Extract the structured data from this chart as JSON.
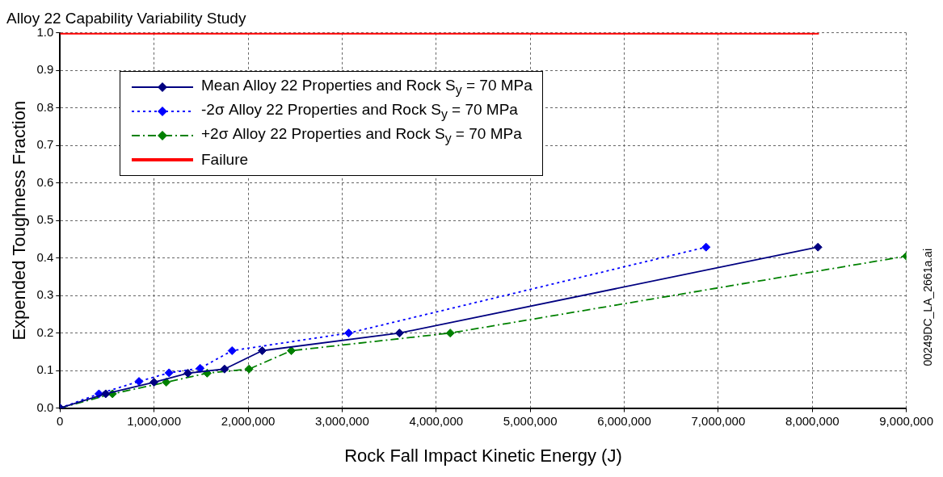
{
  "chart_data": {
    "type": "line",
    "title": "Alloy 22 Capability Variability Study",
    "xlabel": "Rock Fall Impact Kinetic Energy (J)",
    "ylabel": "Expended Toughness Fraction",
    "annotations": [
      "00249DC_LA_2661a.ai"
    ],
    "xlim": [
      0,
      9000000
    ],
    "xticks": [
      0,
      {
        "value": 1000000,
        "label": "1,000,000"
      },
      {
        "value": 2000000,
        "label": "2,000,000"
      },
      {
        "value": 3000000,
        "label": "3,000,000"
      },
      {
        "value": 4000000,
        "label": "4,000,000"
      },
      {
        "value": 5000000,
        "label": "5,000,000"
      },
      {
        "value": 6000000,
        "label": "6,000,000"
      },
      {
        "value": 7000000,
        "label": "7,000,000"
      },
      {
        "value": 8000000,
        "label": "8,000,000"
      },
      {
        "value": 9000000,
        "label": "9,000,000"
      }
    ],
    "ylim": [
      0,
      1
    ],
    "yticks": [
      {
        "value": 0,
        "label": "0.0"
      },
      0.1,
      0.2,
      0.3,
      0.4,
      0.5,
      0.6,
      0.7,
      0.8,
      0.9,
      {
        "value": 1,
        "label": "1.0"
      }
    ],
    "grid": true,
    "legend": "top left",
    "series": [
      {
        "name": "Mean Alloy 22 Properties and Rock S$_{y}$ = 70 MPa",
        "color": "#000080",
        "marker": "diamond",
        "line_style": "solid",
        "x": [
          0,
          486000,
          1000000,
          1360000,
          1750000,
          2150000,
          3610000,
          8060000
        ],
        "values": [
          0,
          0.038,
          0.069,
          0.093,
          0.104,
          0.153,
          0.2,
          0.429
        ]
      },
      {
        "name": "-2σ Alloy 22 Properties and Rock S$_{y}$ = 70 MPa",
        "color": "#0000ff",
        "marker": "diamond",
        "line_style": "dotted",
        "x": [
          0,
          414000,
          840000,
          1160000,
          1490000,
          1830000,
          3070000,
          6870000
        ],
        "values": [
          0,
          0.038,
          0.071,
          0.094,
          0.106,
          0.153,
          0.2,
          0.429
        ]
      },
      {
        "name": "+2σ Alloy 22 Properties and Rock S$_{y}$ = 70 MPa",
        "color": "#008000",
        "marker": "diamond",
        "line_style": "dashed",
        "x": [
          0,
          558000,
          1130000,
          1565000,
          2010000,
          2460000,
          4150000,
          9000000
        ],
        "values": [
          0,
          0.038,
          0.069,
          0.093,
          0.104,
          0.153,
          0.2,
          0.405
        ]
      },
      {
        "name": "Failure",
        "color": "#ff0000",
        "marker": "none",
        "line_style": "solid",
        "x": [
          0,
          8070000
        ],
        "values": [
          1,
          1
        ]
      }
    ]
  }
}
